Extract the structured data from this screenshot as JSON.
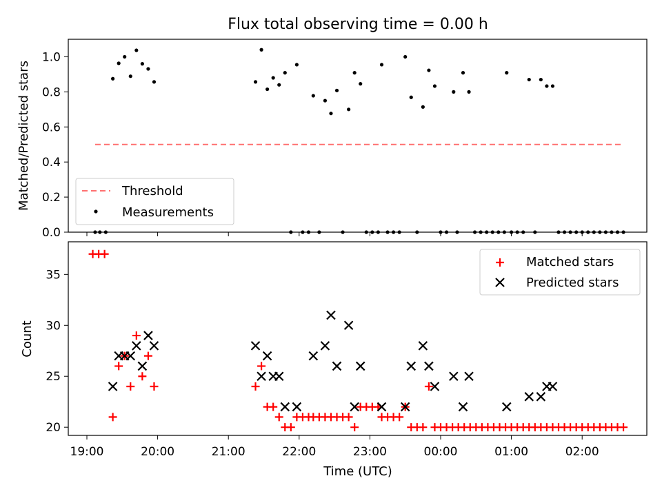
{
  "chart_data": [
    {
      "type": "scatter",
      "title": "Flux total observing time = 0.00 h",
      "xlabel": "",
      "ylabel": "Matched/Predicted stars",
      "ylim": [
        0,
        1.1
      ],
      "yticks": [
        "0.0",
        "0.2",
        "0.4",
        "0.6",
        "0.8",
        "1.0"
      ],
      "legend": "bottom-left",
      "threshold": {
        "name": "Threshold",
        "value": 0.5,
        "color": "#ff7070",
        "x_start": "19:07",
        "x_end": "02:34"
      },
      "series": [
        {
          "name": "Measurements",
          "marker": "dot",
          "color": "#000000",
          "points": [
            [
              "19:07",
              0
            ],
            [
              "19:11",
              0
            ],
            [
              "19:16",
              0
            ],
            [
              "19:22",
              0.875
            ],
            [
              "19:27",
              0.963
            ],
            [
              "19:32",
              1.0
            ],
            [
              "19:37",
              0.889
            ],
            [
              "19:42",
              1.037
            ],
            [
              "19:47",
              0.96
            ],
            [
              "19:52",
              0.931
            ],
            [
              "19:57",
              0.857
            ],
            [
              "21:23",
              0.857
            ],
            [
              "21:28",
              1.04
            ],
            [
              "21:33",
              0.815
            ],
            [
              "21:38",
              0.88
            ],
            [
              "21:43",
              0.84
            ],
            [
              "21:48",
              0.909
            ],
            [
              "21:53",
              0
            ],
            [
              "21:58",
              0.955
            ],
            [
              "22:03",
              0
            ],
            [
              "22:08",
              0
            ],
            [
              "22:12",
              0.778
            ],
            [
              "22:17",
              0
            ],
            [
              "22:22",
              0.75
            ],
            [
              "22:27",
              0.677
            ],
            [
              "22:32",
              0.808
            ],
            [
              "22:37",
              0
            ],
            [
              "22:42",
              0.7
            ],
            [
              "22:47",
              0.909
            ],
            [
              "22:52",
              0.846
            ],
            [
              "22:57",
              0
            ],
            [
              "23:02",
              0
            ],
            [
              "23:07",
              0
            ],
            [
              "23:10",
              0.955
            ],
            [
              "23:15",
              0
            ],
            [
              "23:20",
              0
            ],
            [
              "23:25",
              0
            ],
            [
              "23:30",
              1.0
            ],
            [
              "23:35",
              0.769
            ],
            [
              "23:40",
              0
            ],
            [
              "23:45",
              0.714
            ],
            [
              "23:50",
              0.923
            ],
            [
              "23:55",
              0.833
            ],
            [
              "00:00",
              0
            ],
            [
              "00:05",
              0
            ],
            [
              "00:11",
              0.8
            ],
            [
              "00:14",
              0
            ],
            [
              "00:19",
              0.909
            ],
            [
              "00:24",
              0.8
            ],
            [
              "00:29",
              0
            ],
            [
              "00:34",
              0
            ],
            [
              "00:39",
              0
            ],
            [
              "00:44",
              0
            ],
            [
              "00:49",
              0
            ],
            [
              "00:54",
              0
            ],
            [
              "00:56",
              0.909
            ],
            [
              "01:00",
              0
            ],
            [
              "01:05",
              0
            ],
            [
              "01:10",
              0
            ],
            [
              "01:15",
              0.87
            ],
            [
              "01:20",
              0
            ],
            [
              "01:25",
              0.87
            ],
            [
              "01:30",
              0.833
            ],
            [
              "01:35",
              0.833
            ],
            [
              "01:40",
              0
            ],
            [
              "01:45",
              0
            ],
            [
              "01:50",
              0
            ],
            [
              "01:55",
              0
            ],
            [
              "02:00",
              0
            ],
            [
              "02:05",
              0
            ],
            [
              "02:10",
              0
            ],
            [
              "02:15",
              0
            ],
            [
              "02:20",
              0
            ],
            [
              "02:25",
              0
            ],
            [
              "02:30",
              0
            ],
            [
              "02:35",
              0
            ]
          ]
        }
      ]
    },
    {
      "type": "scatter",
      "title": "",
      "xlabel": "Time (UTC)",
      "ylabel": "Count",
      "ylim": [
        19.2,
        38.2
      ],
      "yticks": [
        "20",
        "25",
        "30",
        "35"
      ],
      "xticks": [
        "19:00",
        "20:00",
        "21:00",
        "22:00",
        "23:00",
        "00:00",
        "01:00",
        "02:00"
      ],
      "legend": "top-right",
      "series": [
        {
          "name": "Matched stars",
          "marker": "plus",
          "color": "#ff0000",
          "points": [
            [
              "19:05",
              37
            ],
            [
              "19:10",
              37
            ],
            [
              "19:15",
              37
            ],
            [
              "19:22",
              21
            ],
            [
              "19:27",
              26
            ],
            [
              "19:32",
              27
            ],
            [
              "19:37",
              24
            ],
            [
              "19:42",
              29
            ],
            [
              "19:47",
              25
            ],
            [
              "19:52",
              27
            ],
            [
              "19:57",
              24
            ],
            [
              "21:23",
              24
            ],
            [
              "21:28",
              26
            ],
            [
              "21:33",
              22
            ],
            [
              "21:38",
              22
            ],
            [
              "21:43",
              21
            ],
            [
              "21:48",
              20
            ],
            [
              "21:53",
              20
            ],
            [
              "21:58",
              21
            ],
            [
              "22:03",
              21
            ],
            [
              "22:08",
              21
            ],
            [
              "22:12",
              21
            ],
            [
              "22:17",
              21
            ],
            [
              "22:22",
              21
            ],
            [
              "22:27",
              21
            ],
            [
              "22:32",
              21
            ],
            [
              "22:37",
              21
            ],
            [
              "22:42",
              21
            ],
            [
              "22:47",
              20
            ],
            [
              "22:52",
              22
            ],
            [
              "22:57",
              22
            ],
            [
              "23:02",
              22
            ],
            [
              "23:07",
              22
            ],
            [
              "23:10",
              21
            ],
            [
              "23:15",
              21
            ],
            [
              "23:20",
              21
            ],
            [
              "23:25",
              21
            ],
            [
              "23:30",
              22
            ],
            [
              "23:35",
              20
            ],
            [
              "23:40",
              20
            ],
            [
              "23:45",
              20
            ],
            [
              "23:50",
              24
            ],
            [
              "23:55",
              20
            ],
            [
              "00:00",
              20
            ],
            [
              "00:05",
              20
            ],
            [
              "00:10",
              20
            ],
            [
              "00:15",
              20
            ],
            [
              "00:20",
              20
            ],
            [
              "00:25",
              20
            ],
            [
              "00:30",
              20
            ],
            [
              "00:35",
              20
            ],
            [
              "00:40",
              20
            ],
            [
              "00:45",
              20
            ],
            [
              "00:50",
              20
            ],
            [
              "00:55",
              20
            ],
            [
              "01:00",
              20
            ],
            [
              "01:05",
              20
            ],
            [
              "01:10",
              20
            ],
            [
              "01:15",
              20
            ],
            [
              "01:20",
              20
            ],
            [
              "01:25",
              20
            ],
            [
              "01:30",
              20
            ],
            [
              "01:35",
              20
            ],
            [
              "01:40",
              20
            ],
            [
              "01:45",
              20
            ],
            [
              "01:50",
              20
            ],
            [
              "01:55",
              20
            ],
            [
              "02:00",
              20
            ],
            [
              "02:05",
              20
            ],
            [
              "02:10",
              20
            ],
            [
              "02:15",
              20
            ],
            [
              "02:20",
              20
            ],
            [
              "02:25",
              20
            ],
            [
              "02:30",
              20
            ],
            [
              "02:35",
              20
            ]
          ]
        },
        {
          "name": "Predicted stars",
          "marker": "x",
          "color": "#000000",
          "points": [
            [
              "19:22",
              24
            ],
            [
              "19:27",
              27
            ],
            [
              "19:32",
              27
            ],
            [
              "19:37",
              27
            ],
            [
              "19:42",
              28
            ],
            [
              "19:47",
              26
            ],
            [
              "19:52",
              29
            ],
            [
              "19:57",
              28
            ],
            [
              "21:23",
              28
            ],
            [
              "21:28",
              25
            ],
            [
              "21:33",
              27
            ],
            [
              "21:38",
              25
            ],
            [
              "21:43",
              25
            ],
            [
              "21:48",
              22
            ],
            [
              "21:58",
              22
            ],
            [
              "22:12",
              27
            ],
            [
              "22:22",
              28
            ],
            [
              "22:27",
              31
            ],
            [
              "22:32",
              26
            ],
            [
              "22:42",
              30
            ],
            [
              "22:47",
              22
            ],
            [
              "22:52",
              26
            ],
            [
              "23:10",
              22
            ],
            [
              "23:30",
              22
            ],
            [
              "23:35",
              26
            ],
            [
              "23:45",
              28
            ],
            [
              "23:50",
              26
            ],
            [
              "23:55",
              24
            ],
            [
              "00:11",
              25
            ],
            [
              "00:19",
              22
            ],
            [
              "00:24",
              25
            ],
            [
              "00:56",
              22
            ],
            [
              "01:15",
              23
            ],
            [
              "01:25",
              23
            ],
            [
              "01:30",
              24
            ],
            [
              "01:35",
              24
            ]
          ]
        }
      ]
    }
  ]
}
